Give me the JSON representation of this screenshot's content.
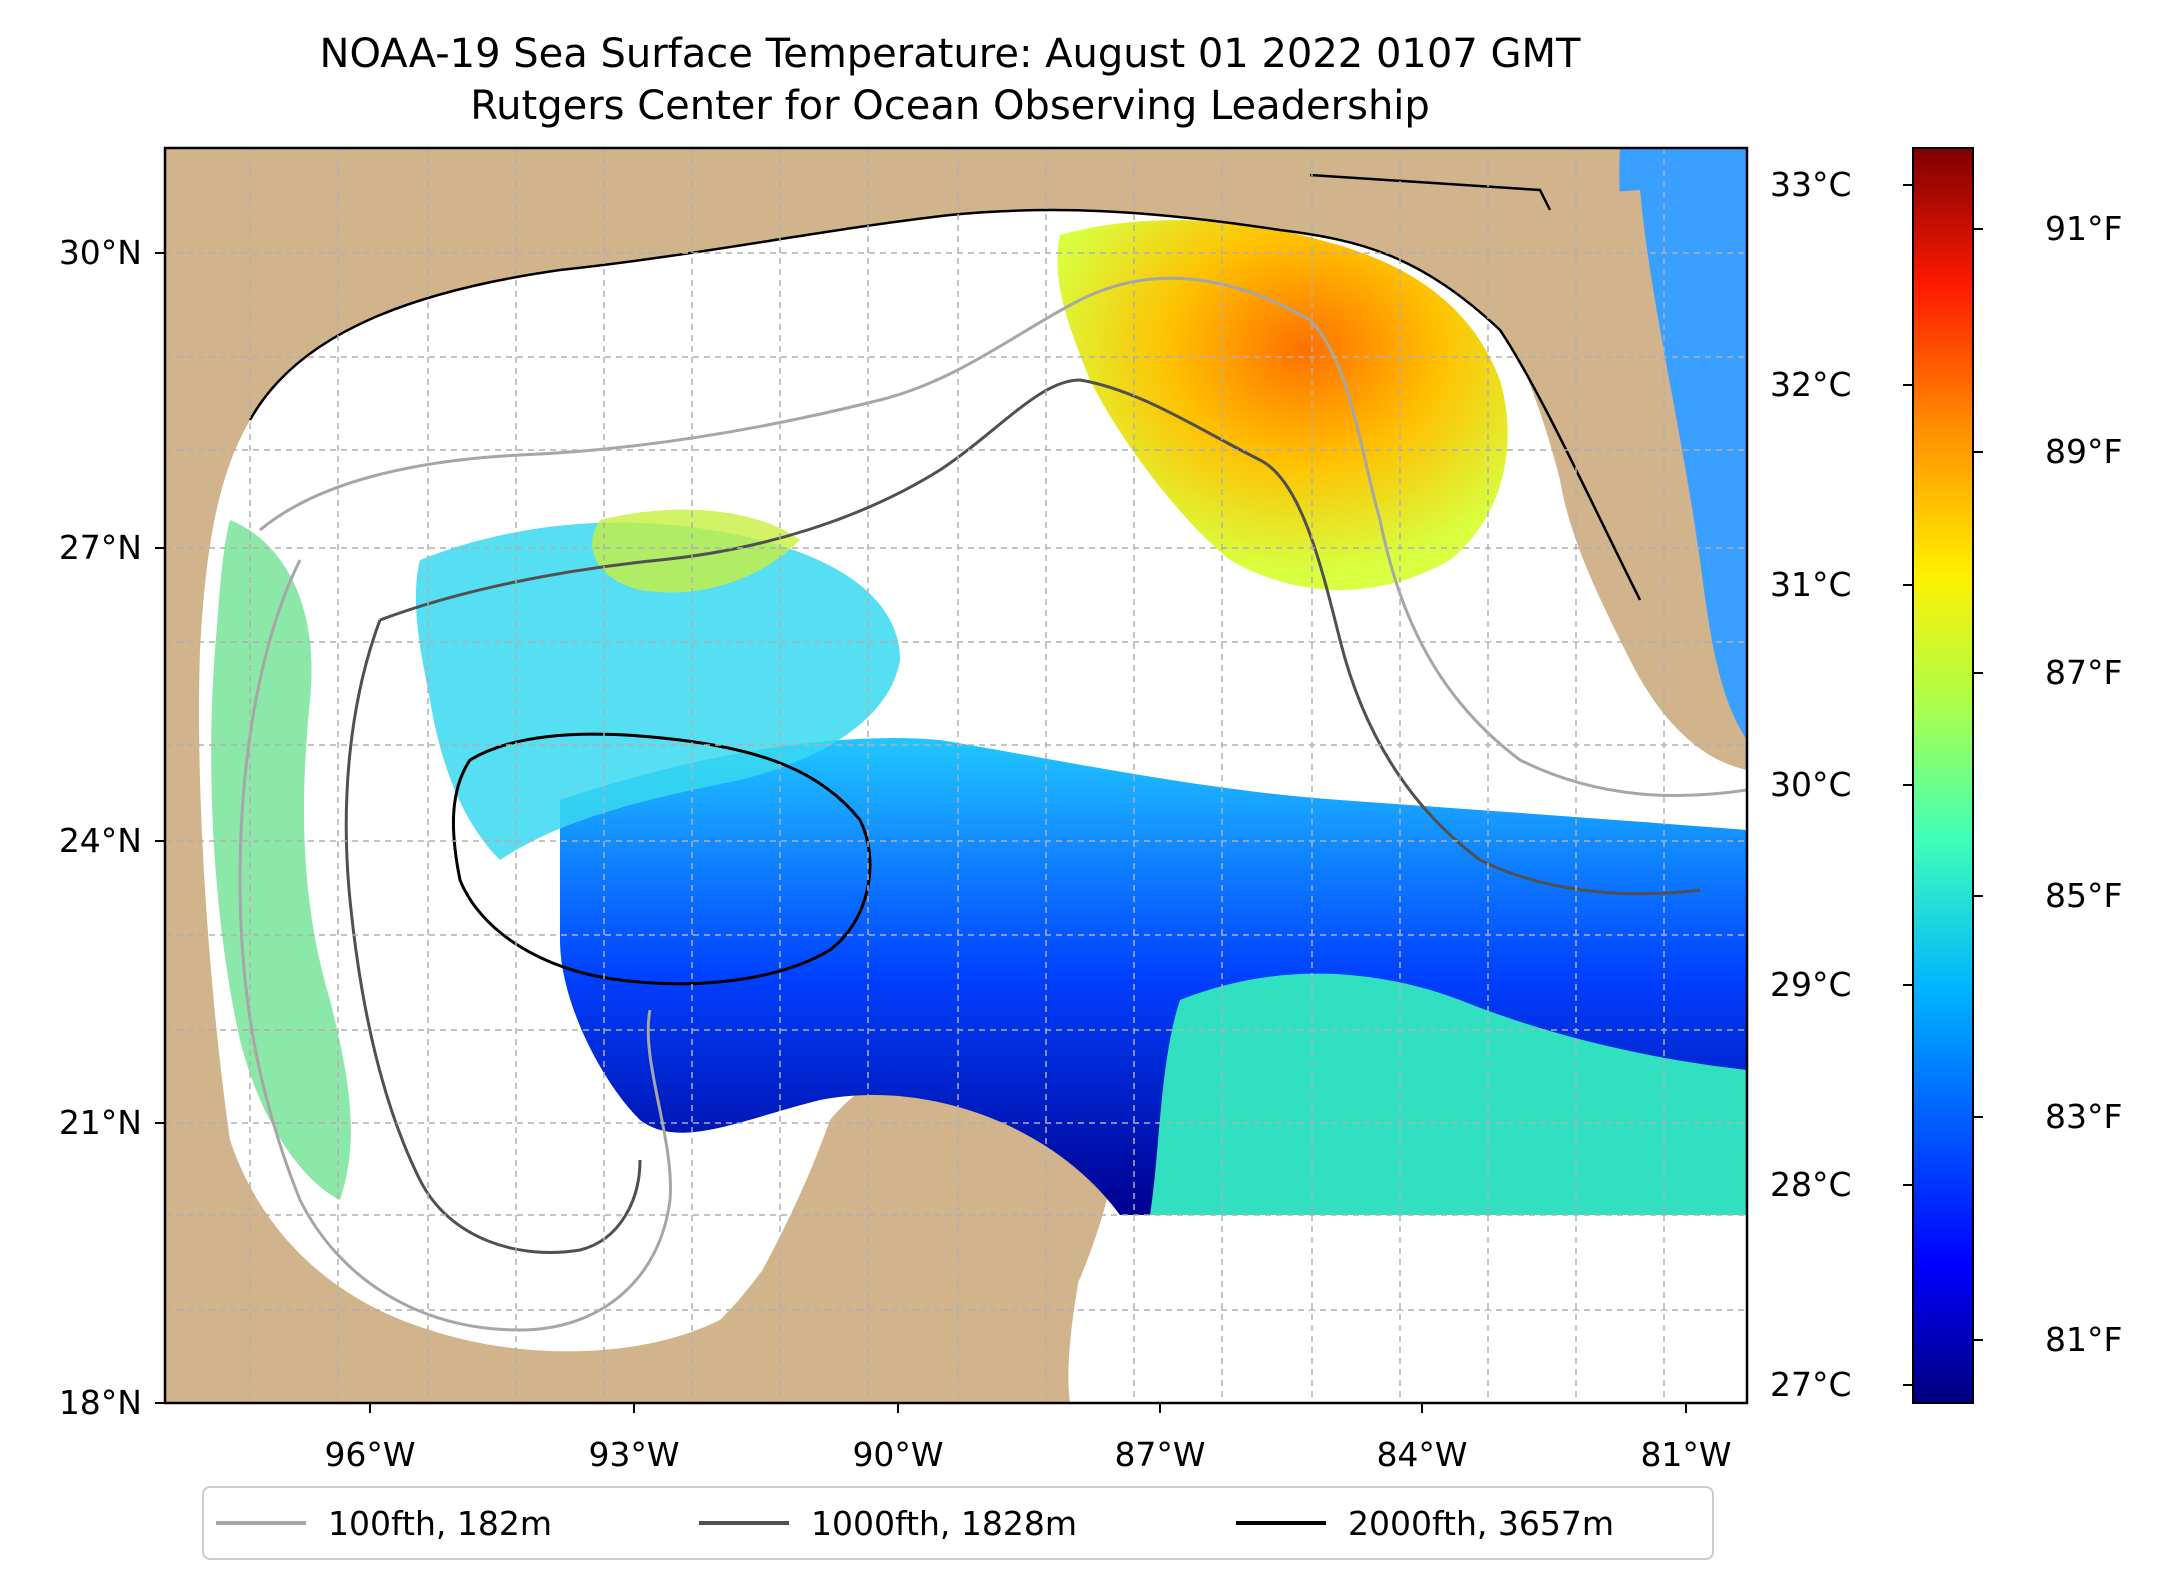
{
  "title": {
    "line1": "NOAA-19 Sea Surface Temperature: August 01 2022 0107 GMT",
    "line2": "Rutgers Center for Ocean Observing Leadership"
  },
  "axes": {
    "lat_ticks": [
      "30°N",
      "27°N",
      "24°N",
      "21°N",
      "18°N"
    ],
    "lon_ticks": [
      "96°W",
      "93°W",
      "90°W",
      "87°W",
      "84°W",
      "81°W"
    ]
  },
  "colorbar": {
    "celsius_ticks": [
      "33°C",
      "32°C",
      "31°C",
      "30°C",
      "29°C",
      "28°C",
      "27°C"
    ],
    "fahrenheit_ticks": [
      "91°F",
      "89°F",
      "87°F",
      "85°F",
      "83°F",
      "81°F"
    ],
    "colors": [
      "#00007f",
      "#0000ff",
      "#007fff",
      "#00e5ff",
      "#4cffac",
      "#c4ff34",
      "#ffe100",
      "#ff7700",
      "#ee0000",
      "#7f0000"
    ]
  },
  "legend": {
    "items": [
      {
        "label": "100fth, 182m",
        "color": "#a6a6a6"
      },
      {
        "label": "1000fth, 1828m",
        "color": "#505050"
      },
      {
        "label": "2000fth, 3657m",
        "color": "#000000"
      }
    ]
  },
  "map_colors": {
    "land": "#d2b48c",
    "cloud": "#ffffff",
    "lakes": "#9db5d8"
  }
}
